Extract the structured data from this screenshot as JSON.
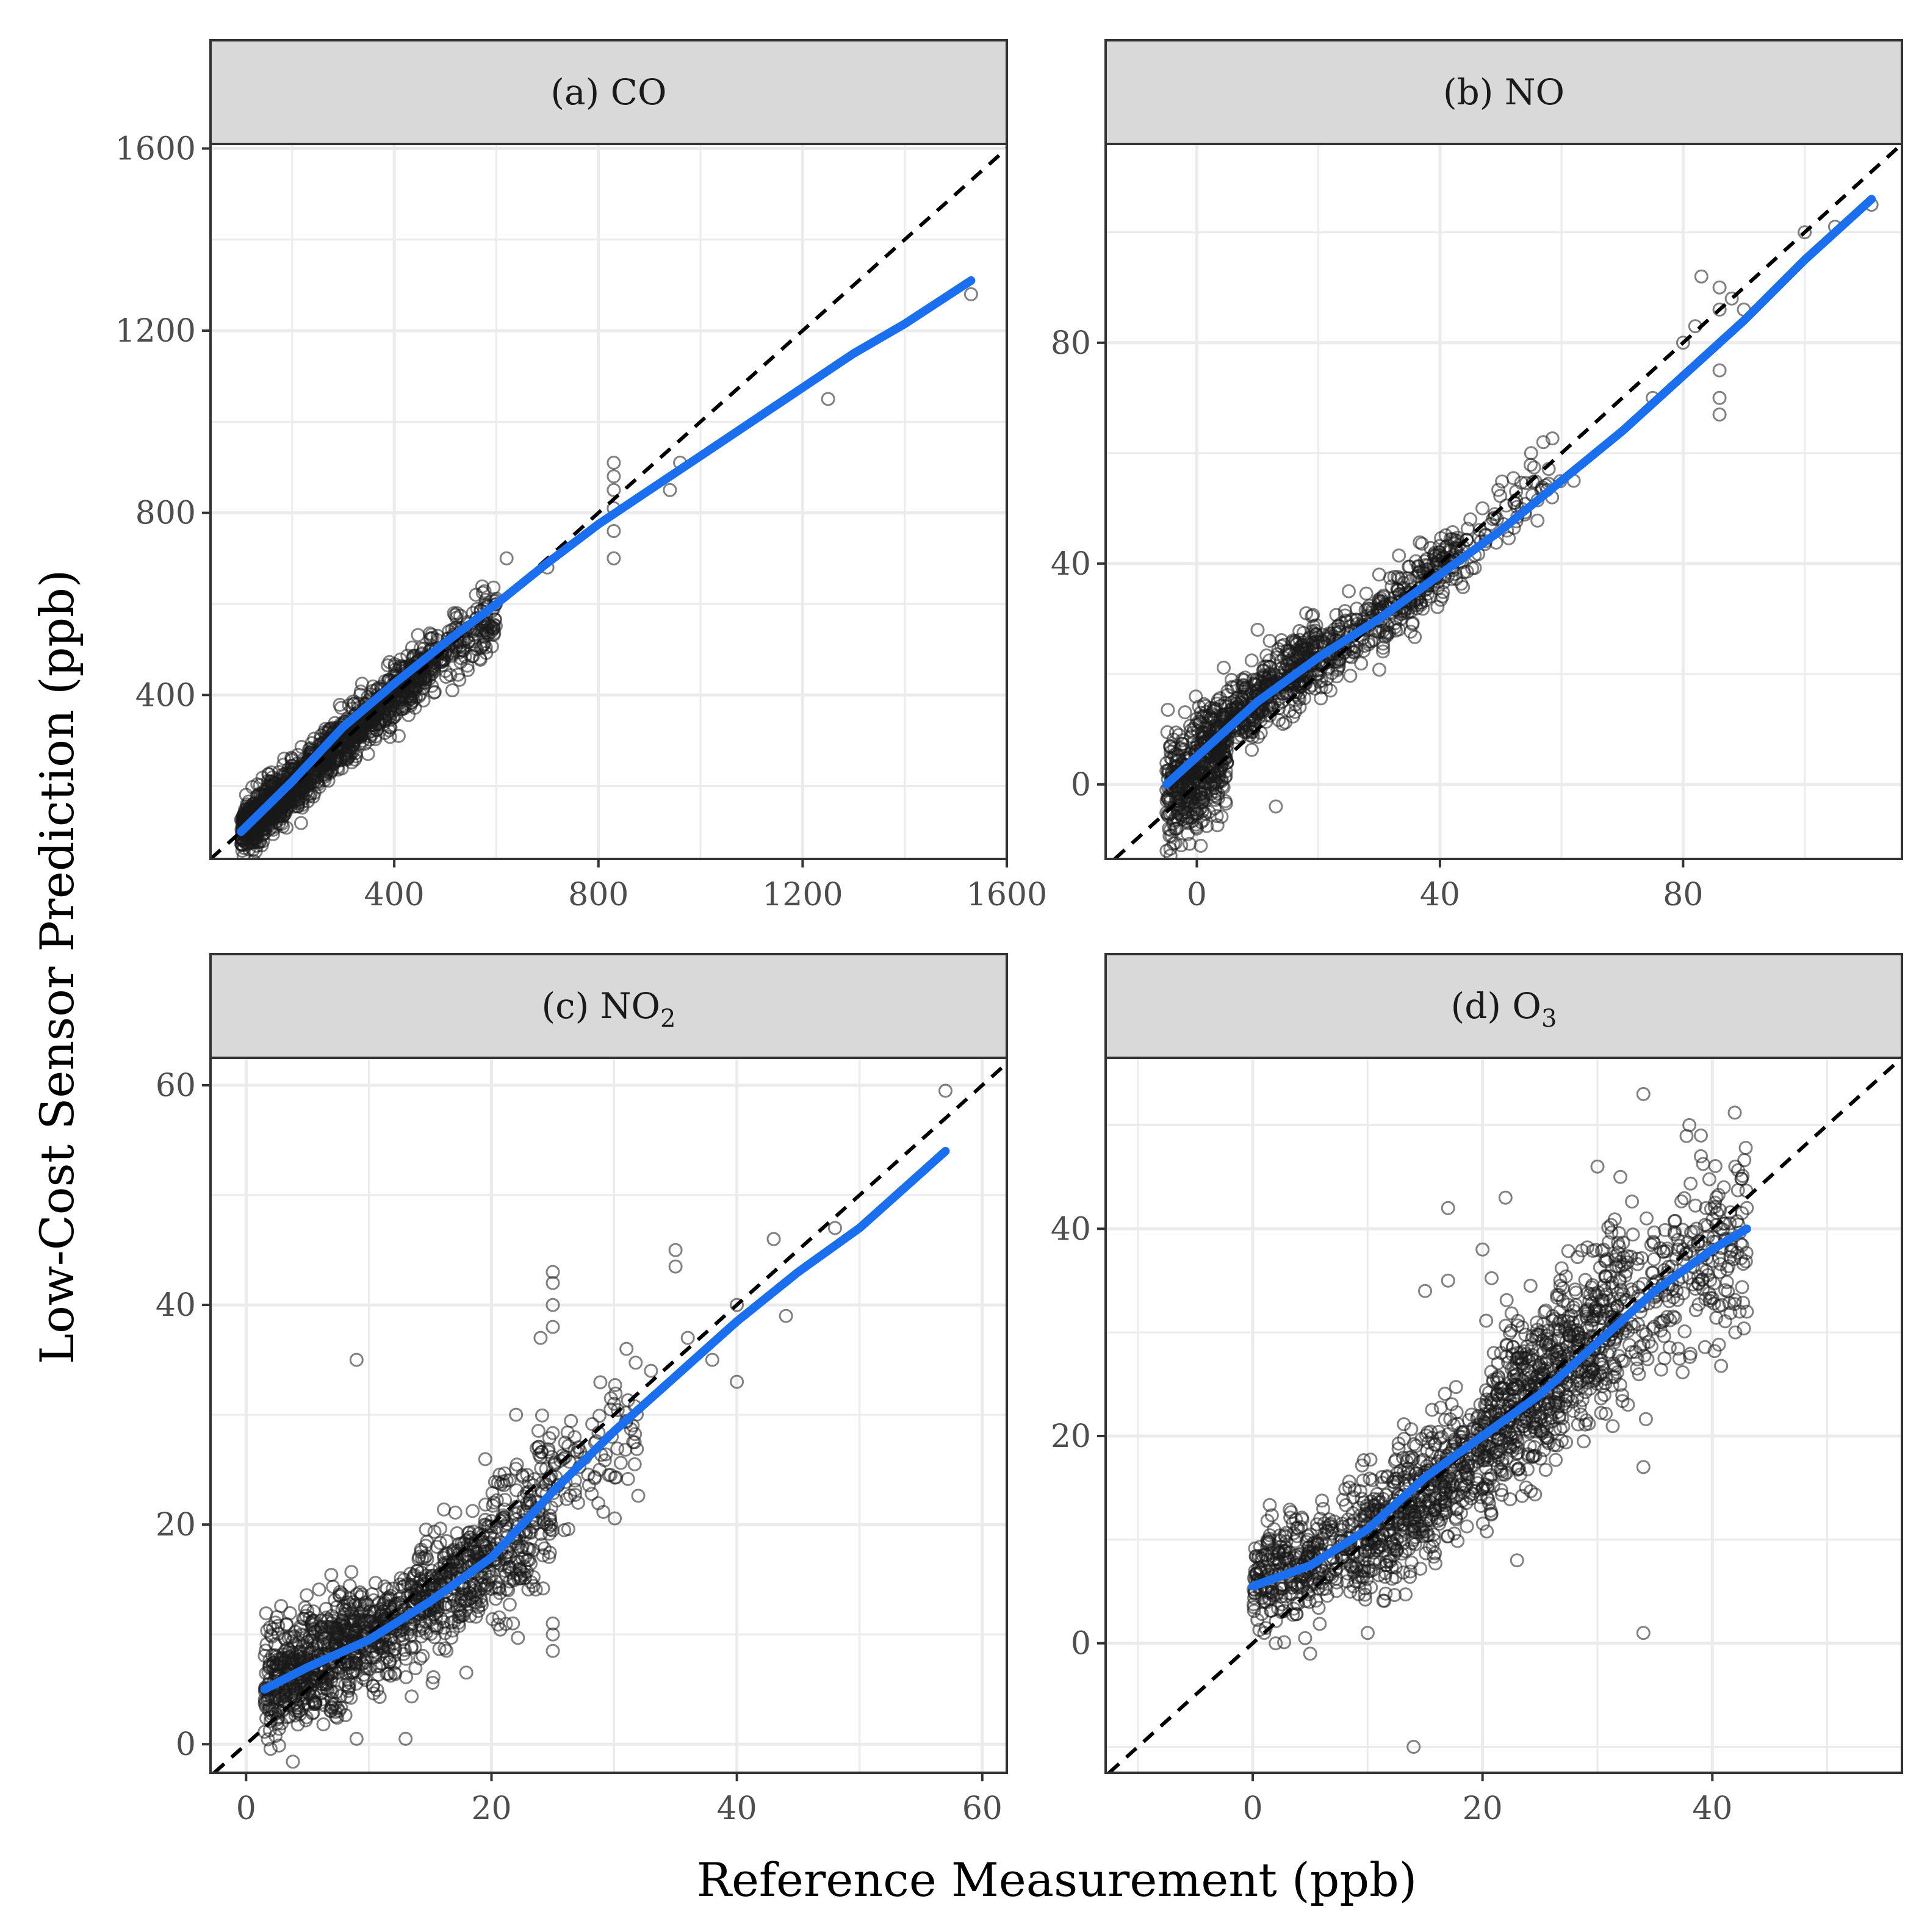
{
  "figure": {
    "xlabel": "Reference Measurement (ppb)",
    "ylabel": "Low-Cost Sensor Prediction (ppb)",
    "colors": {
      "fit": "#1a6ff0",
      "points": "#1a1a1a",
      "identity": "#000000",
      "strip": "#d9d9d9",
      "grid": "#ebebeb"
    }
  },
  "chart_data": [
    {
      "type": "scatter",
      "title": "(a) CO",
      "strip": {
        "text": "(a) CO",
        "sub": ""
      },
      "xlim": [
        40,
        1600
      ],
      "ylim": [
        40,
        1610
      ],
      "xticks": [
        400,
        800,
        1200,
        1600
      ],
      "yticks": [
        400,
        800,
        1200,
        1600
      ],
      "identity_line": true,
      "fit_line": {
        "x": [
          100,
          200,
          300,
          400,
          500,
          600,
          700,
          800,
          900,
          1000,
          1100,
          1200,
          1300,
          1400,
          1530
        ],
        "y": [
          100,
          210,
          330,
          425,
          515,
          600,
          690,
          775,
          850,
          925,
          1000,
          1075,
          1150,
          1215,
          1310
        ]
      },
      "points": [
        [
          180,
          170
        ],
        [
          320,
          300
        ],
        [
          460,
          440
        ],
        [
          560,
          620
        ],
        [
          620,
          700
        ],
        [
          700,
          680
        ],
        [
          830,
          910
        ],
        [
          830,
          880
        ],
        [
          830,
          850
        ],
        [
          830,
          810
        ],
        [
          830,
          760
        ],
        [
          830,
          700
        ],
        [
          940,
          850
        ],
        [
          960,
          910
        ],
        [
          1250,
          1050
        ],
        [
          1530,
          1280
        ]
      ],
      "cloud": [
        {
          "x": [
            100,
            180
          ],
          "center": {
            "slope": 1.0,
            "intercept": 0
          },
          "spread": 28,
          "n": 500
        },
        {
          "x": [
            180,
            320
          ],
          "center": {
            "slope": 1.0,
            "intercept": 0
          },
          "spread": 30,
          "n": 500
        },
        {
          "x": [
            320,
            480
          ],
          "center": {
            "slope": 0.95,
            "intercept": 20
          },
          "spread": 30,
          "n": 450
        },
        {
          "x": [
            480,
            600
          ],
          "center": {
            "slope": 0.9,
            "intercept": 45
          },
          "spread": 35,
          "n": 150
        }
      ]
    },
    {
      "type": "scatter",
      "title": "(b) NO",
      "strip": {
        "text": "(b) NO",
        "sub": ""
      },
      "xlim": [
        -15,
        116
      ],
      "ylim": [
        -13.5,
        116
      ],
      "xticks": [
        0,
        40,
        80
      ],
      "yticks": [
        0,
        40,
        80
      ],
      "identity_line": true,
      "fit_line": {
        "x": [
          -5,
          0,
          5,
          10,
          20,
          30,
          40,
          50,
          60,
          70,
          80,
          90,
          100,
          111
        ],
        "y": [
          0,
          5,
          10,
          15,
          23,
          30,
          38,
          46,
          55,
          64,
          74,
          84,
          95,
          106
        ]
      },
      "points": [
        [
          -5,
          -1
        ],
        [
          -2,
          -3
        ],
        [
          2,
          -5
        ],
        [
          0,
          -8
        ],
        [
          10,
          28
        ],
        [
          13,
          -4
        ],
        [
          12,
          26
        ],
        [
          18,
          31
        ],
        [
          25,
          35
        ],
        [
          30,
          38
        ],
        [
          45,
          48
        ],
        [
          47,
          50
        ],
        [
          55,
          60
        ],
        [
          57,
          62
        ],
        [
          62,
          55
        ],
        [
          75,
          70
        ],
        [
          80,
          80
        ],
        [
          82,
          83
        ],
        [
          86,
          86
        ],
        [
          86,
          90
        ],
        [
          86,
          75
        ],
        [
          86,
          70
        ],
        [
          86,
          67
        ],
        [
          83,
          92
        ],
        [
          88,
          88
        ],
        [
          90,
          86
        ],
        [
          100,
          100
        ],
        [
          105,
          101
        ],
        [
          111,
          105
        ]
      ],
      "cloud": [
        {
          "x": [
            -5,
            5
          ],
          "center": {
            "slope": 1.0,
            "intercept": 3
          },
          "spread": 5,
          "n": 500
        },
        {
          "x": [
            5,
            20
          ],
          "center": {
            "slope": 0.85,
            "intercept": 7
          },
          "spread": 3,
          "n": 400
        },
        {
          "x": [
            20,
            44
          ],
          "center": {
            "slope": 0.85,
            "intercept": 5
          },
          "spread": 3,
          "n": 350
        },
        {
          "x": [
            44,
            60
          ],
          "center": {
            "slope": 0.9,
            "intercept": 3
          },
          "spread": 3,
          "n": 60
        }
      ]
    },
    {
      "type": "scatter",
      "title": "(c) NO2",
      "strip": {
        "text": "(c) NO",
        "sub": "2"
      },
      "xlim": [
        -2.9,
        62
      ],
      "ylim": [
        -2.6,
        62.5
      ],
      "xticks": [
        0,
        20,
        40,
        60
      ],
      "yticks": [
        0,
        20,
        40,
        60
      ],
      "identity_line": true,
      "fit_line": {
        "x": [
          1.5,
          5,
          10,
          15,
          20,
          25,
          30,
          35,
          40,
          45,
          50,
          57
        ],
        "y": [
          5,
          7,
          9.5,
          13,
          17,
          23,
          28.5,
          33.5,
          38.5,
          43,
          47,
          54
        ]
      },
      "points": [
        [
          9,
          35
        ],
        [
          9,
          0.5
        ],
        [
          13,
          0.5
        ],
        [
          22,
          30
        ],
        [
          24,
          37
        ],
        [
          25,
          43
        ],
        [
          25,
          42
        ],
        [
          25,
          40
        ],
        [
          25,
          38
        ],
        [
          25,
          11
        ],
        [
          25,
          10
        ],
        [
          25,
          8.5
        ],
        [
          30,
          31
        ],
        [
          31,
          36
        ],
        [
          33,
          34
        ],
        [
          35,
          45
        ],
        [
          35,
          43.5
        ],
        [
          36,
          37
        ],
        [
          38,
          35
        ],
        [
          40,
          40
        ],
        [
          40,
          33
        ],
        [
          43,
          46
        ],
        [
          44,
          39
        ],
        [
          48,
          47
        ],
        [
          57,
          59.5
        ]
      ],
      "cloud": [
        {
          "x": [
            1.5,
            10
          ],
          "center": {
            "slope": 0.62,
            "intercept": 4
          },
          "spread": 2.5,
          "n": 600
        },
        {
          "x": [
            10,
            20
          ],
          "center": {
            "slope": 0.75,
            "intercept": 2
          },
          "spread": 2.5,
          "n": 500
        },
        {
          "x": [
            20,
            25
          ],
          "center": {
            "slope": 1.1,
            "intercept": -5
          },
          "spread": 3.5,
          "n": 200
        },
        {
          "x": [
            25,
            32
          ],
          "center": {
            "slope": 1.0,
            "intercept": -2
          },
          "spread": 3,
          "n": 80
        }
      ]
    },
    {
      "type": "scatter",
      "title": "(d) O3",
      "strip": {
        "text": "(d) O",
        "sub": "3"
      },
      "xlim": [
        -12.8,
        56.5
      ],
      "ylim": [
        -12.5,
        56.5
      ],
      "xticks": [
        0,
        20,
        40
      ],
      "yticks": [
        0,
        20,
        40
      ],
      "identity_line": true,
      "fit_line": {
        "x": [
          0,
          5,
          10,
          15,
          20,
          25,
          30,
          35,
          40,
          43
        ],
        "y": [
          5.5,
          7.5,
          11,
          16,
          20,
          24,
          29,
          34,
          38,
          40
        ]
      },
      "points": [
        [
          14,
          -10
        ],
        [
          17,
          42
        ],
        [
          20,
          38
        ],
        [
          22,
          43
        ],
        [
          17,
          35
        ],
        [
          15,
          34
        ],
        [
          34,
          1
        ],
        [
          34,
          53
        ],
        [
          34,
          17
        ],
        [
          38,
          50
        ],
        [
          39,
          49
        ],
        [
          39,
          47
        ],
        [
          41,
          44
        ],
        [
          42,
          46
        ],
        [
          43,
          42
        ],
        [
          40,
          38
        ],
        [
          42,
          30
        ],
        [
          43,
          32
        ],
        [
          37,
          38
        ],
        [
          30,
          46
        ],
        [
          32,
          45
        ],
        [
          5,
          -1
        ],
        [
          2,
          0
        ],
        [
          1,
          1
        ],
        [
          23,
          8
        ],
        [
          10,
          1
        ]
      ],
      "cloud": [
        {
          "x": [
            0,
            8
          ],
          "center": {
            "slope": 0.4,
            "intercept": 6
          },
          "spread": 2.5,
          "n": 300
        },
        {
          "x": [
            8,
            20
          ],
          "center": {
            "slope": 0.9,
            "intercept": 1
          },
          "spread": 3,
          "n": 550
        },
        {
          "x": [
            20,
            32
          ],
          "center": {
            "slope": 1.0,
            "intercept": 0
          },
          "spread": 4,
          "n": 700
        },
        {
          "x": [
            32,
            43
          ],
          "center": {
            "slope": 0.7,
            "intercept": 9
          },
          "spread": 4.5,
          "n": 250
        }
      ]
    }
  ]
}
